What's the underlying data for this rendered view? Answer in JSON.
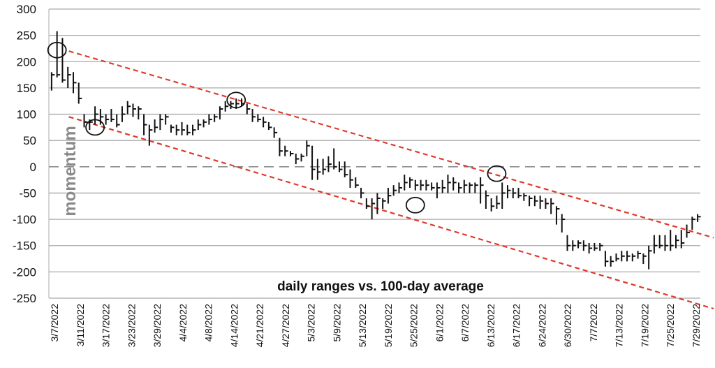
{
  "chart_data": {
    "type": "ohlc",
    "xlabel": "daily ranges vs. 100-day average",
    "ylabel": "momentum",
    "ylim": [
      -250,
      300
    ],
    "yticks": [
      300,
      250,
      200,
      150,
      100,
      50,
      0,
      -50,
      -100,
      -150,
      -200,
      -250
    ],
    "grid": true,
    "zero_line": "dashed",
    "x_tick_labels": [
      "3/7/2022",
      "3/11/2022",
      "3/17/2022",
      "3/23/2022",
      "3/29/2022",
      "4/4/2022",
      "4/8/2022",
      "4/14/2022",
      "4/21/2022",
      "4/27/2022",
      "5/3/2022",
      "5/9/2022",
      "5/13/2022",
      "5/19/2022",
      "5/25/2022",
      "6/1/2022",
      "6/7/2022",
      "6/13/2022",
      "6/17/2022",
      "6/24/2022",
      "6/30/2022",
      "7/7/2022",
      "7/13/2022",
      "7/19/2022",
      "7/25/2022",
      "7/29/2022"
    ],
    "bars": [
      [
        180,
        145,
        175
      ],
      [
        258,
        170,
        175
      ],
      [
        245,
        160,
        165
      ],
      [
        190,
        150,
        175
      ],
      [
        180,
        140,
        160
      ],
      [
        160,
        120,
        130
      ],
      [
        100,
        75,
        85
      ],
      [
        90,
        70,
        85
      ],
      [
        115,
        80,
        100
      ],
      [
        110,
        80,
        95
      ],
      [
        100,
        80,
        90
      ],
      [
        110,
        85,
        90
      ],
      [
        100,
        75,
        80
      ],
      [
        115,
        85,
        100
      ],
      [
        125,
        100,
        115
      ],
      [
        120,
        95,
        110
      ],
      [
        115,
        90,
        110
      ],
      [
        100,
        60,
        80
      ],
      [
        80,
        40,
        70
      ],
      [
        90,
        65,
        75
      ],
      [
        100,
        70,
        90
      ],
      [
        100,
        80,
        95
      ],
      [
        80,
        65,
        75
      ],
      [
        80,
        60,
        70
      ],
      [
        85,
        60,
        70
      ],
      [
        80,
        60,
        65
      ],
      [
        80,
        60,
        70
      ],
      [
        90,
        70,
        80
      ],
      [
        90,
        75,
        85
      ],
      [
        100,
        80,
        90
      ],
      [
        100,
        85,
        95
      ],
      [
        115,
        90,
        110
      ],
      [
        125,
        105,
        115
      ],
      [
        125,
        110,
        120
      ],
      [
        130,
        110,
        120
      ],
      [
        130,
        115,
        120
      ],
      [
        120,
        100,
        110
      ],
      [
        110,
        85,
        95
      ],
      [
        100,
        85,
        90
      ],
      [
        95,
        75,
        85
      ],
      [
        85,
        70,
        75
      ],
      [
        75,
        55,
        65
      ],
      [
        55,
        20,
        30
      ],
      [
        40,
        20,
        30
      ],
      [
        30,
        20,
        25
      ],
      [
        25,
        5,
        15
      ],
      [
        25,
        10,
        20
      ],
      [
        50,
        20,
        40
      ],
      [
        40,
        -25,
        -5
      ],
      [
        15,
        -25,
        -10
      ],
      [
        15,
        -15,
        -5
      ],
      [
        20,
        -10,
        5
      ],
      [
        35,
        -5,
        0
      ],
      [
        10,
        -10,
        -5
      ],
      [
        10,
        -20,
        -15
      ],
      [
        -5,
        -40,
        -25
      ],
      [
        -20,
        -40,
        -35
      ],
      [
        -40,
        -60,
        -50
      ],
      [
        -60,
        -80,
        -75
      ],
      [
        -60,
        -100,
        -70
      ],
      [
        -50,
        -90,
        -60
      ],
      [
        -60,
        -80,
        -65
      ],
      [
        -40,
        -70,
        -55
      ],
      [
        -35,
        -55,
        -45
      ],
      [
        -30,
        -50,
        -40
      ],
      [
        -15,
        -45,
        -30
      ],
      [
        -20,
        -40,
        -25
      ],
      [
        -25,
        -45,
        -35
      ],
      [
        -25,
        -45,
        -35
      ],
      [
        -25,
        -45,
        -35
      ],
      [
        -30,
        -45,
        -40
      ],
      [
        -30,
        -60,
        -40
      ],
      [
        -25,
        -50,
        -40
      ],
      [
        -15,
        -50,
        -30
      ],
      [
        -20,
        -45,
        -30
      ],
      [
        -30,
        -50,
        -40
      ],
      [
        -25,
        -50,
        -35
      ],
      [
        -30,
        -50,
        -35
      ],
      [
        -30,
        -50,
        -35
      ],
      [
        -20,
        -70,
        -35
      ],
      [
        -45,
        -80,
        -55
      ],
      [
        -60,
        -85,
        -75
      ],
      [
        -55,
        -80,
        -70
      ],
      [
        -30,
        -80,
        -50
      ],
      [
        -35,
        -60,
        -45
      ],
      [
        -40,
        -60,
        -50
      ],
      [
        -40,
        -60,
        -55
      ],
      [
        -50,
        -65,
        -55
      ],
      [
        -55,
        -75,
        -60
      ],
      [
        -55,
        -75,
        -65
      ],
      [
        -55,
        -80,
        -65
      ],
      [
        -60,
        -80,
        -70
      ],
      [
        -60,
        -90,
        -70
      ],
      [
        -75,
        -110,
        -80
      ],
      [
        -90,
        -125,
        -100
      ],
      [
        -130,
        -160,
        -150
      ],
      [
        -140,
        -160,
        -150
      ],
      [
        -140,
        -155,
        -145
      ],
      [
        -140,
        -160,
        -150
      ],
      [
        -145,
        -165,
        -155
      ],
      [
        -145,
        -160,
        -155
      ],
      [
        -145,
        -160,
        -150
      ],
      [
        -160,
        -190,
        -180
      ],
      [
        -170,
        -190,
        -180
      ],
      [
        -165,
        -180,
        -175
      ],
      [
        -160,
        -180,
        -170
      ],
      [
        -160,
        -180,
        -170
      ],
      [
        -165,
        -180,
        -170
      ],
      [
        -160,
        -175,
        -165
      ],
      [
        -165,
        -185,
        -170
      ],
      [
        -150,
        -195,
        -160
      ],
      [
        -130,
        -165,
        -150
      ],
      [
        -130,
        -155,
        -150
      ],
      [
        -130,
        -160,
        -150
      ],
      [
        -120,
        -160,
        -150
      ],
      [
        -130,
        -155,
        -140
      ],
      [
        -120,
        -155,
        -145
      ],
      [
        -110,
        -135,
        -125
      ],
      [
        -95,
        -120,
        -100
      ],
      [
        -90,
        -105,
        -95
      ]
    ],
    "trend_lines": [
      {
        "color": "#e0392b",
        "from": [
          0.03,
          220
        ],
        "to": [
          1.0,
          -135
        ]
      },
      {
        "color": "#e0392b",
        "from": [
          0.03,
          95
        ],
        "to": [
          1.0,
          -270
        ]
      }
    ],
    "annotations_circles": [
      {
        "bar": 1,
        "value": 222
      },
      {
        "bar": 8,
        "value": 75
      },
      {
        "bar": 34,
        "value": 127
      },
      {
        "bar": 67,
        "value": -73
      },
      {
        "bar": 82,
        "value": -13
      }
    ]
  }
}
